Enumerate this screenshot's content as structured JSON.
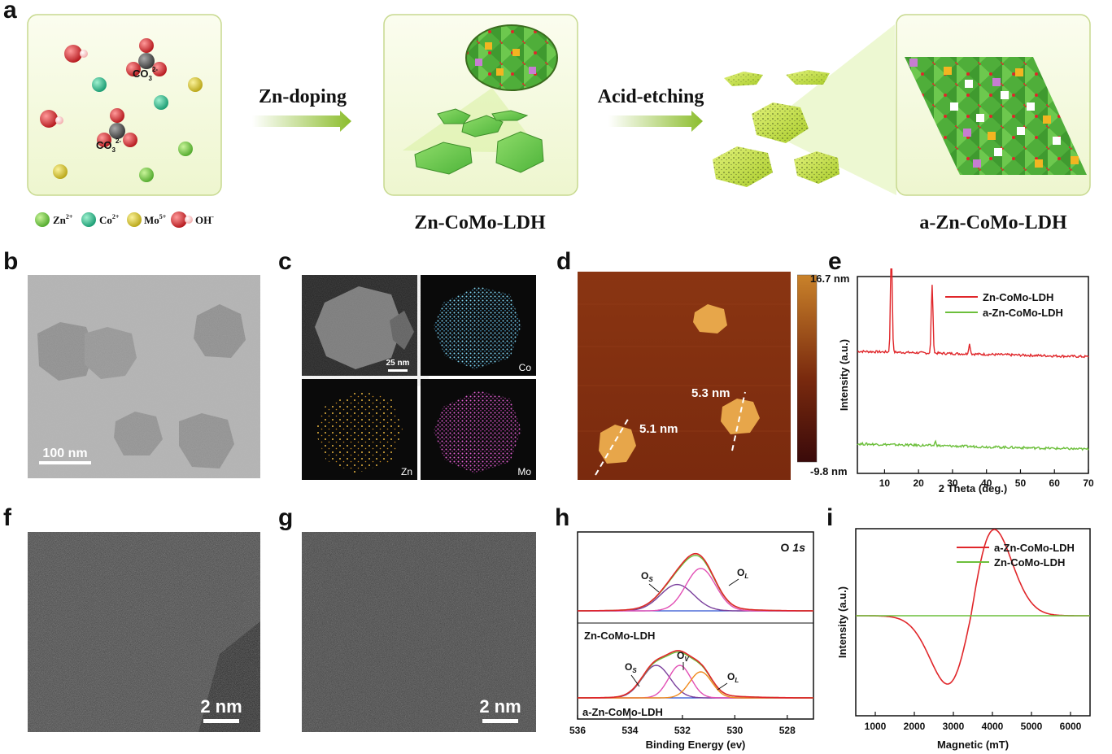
{
  "panels": {
    "a": {
      "label": "a",
      "step1": "Zn-doping",
      "step2": "Acid-etching",
      "product1": "Zn-CoMo-LDH",
      "product2": "a-Zn-CoMo-LDH",
      "ion_co3_1": "CO",
      "ion_co3_1_sub": "3",
      "ion_co3_1_sup": "2-",
      "ion_co3_2": "CO",
      "ion_co3_2_sub": "3",
      "ion_co3_2_sup": "2-",
      "legend": [
        {
          "name": "Zn",
          "sup": "2+",
          "color": "#6cc33a"
        },
        {
          "name": "Co",
          "sup": "2+",
          "color": "#2fb58b"
        },
        {
          "name": "Mo",
          "sup": "5+",
          "color": "#d9c82a"
        },
        {
          "name": "OH",
          "sup": "-",
          "color": "#d9363b"
        }
      ]
    },
    "b": {
      "label": "b",
      "scale": "100 nm"
    },
    "c": {
      "label": "c",
      "scale": "25 nm",
      "maps": [
        "Co",
        "Zn",
        "Mo"
      ]
    },
    "d": {
      "label": "d",
      "h1": "5.3 nm",
      "h2": "5.1 nm",
      "cmax": "16.7 nm",
      "cmin": "-9.8 nm"
    },
    "f": {
      "label": "f",
      "scale": "2 nm"
    },
    "g": {
      "label": "g",
      "scale": "2 nm"
    }
  },
  "chart_data": [
    {
      "id": "e",
      "label": "e",
      "type": "line",
      "xlabel": "2 Theta (deg.)",
      "ylabel": "Intensity (a.u.)",
      "xlim": [
        2,
        70
      ],
      "xticks": [
        10,
        20,
        30,
        40,
        50,
        60,
        70
      ],
      "series": [
        {
          "name": "Zn-CoMo-LDH",
          "color": "#e0262a",
          "baseline": 0.62,
          "peaks": [
            [
              12,
              0.55
            ],
            [
              24,
              0.35
            ],
            [
              35,
              0.05
            ]
          ]
        },
        {
          "name": "a-Zn-CoMo-LDH",
          "color": "#6cbf3b",
          "baseline": 0.15,
          "peaks": [
            [
              25,
              0.02
            ]
          ]
        }
      ]
    },
    {
      "id": "h",
      "label": "h",
      "type": "line",
      "title": "O 1s",
      "title_main": "O",
      "title_em": "1s",
      "xlabel": "Binding Energy (ev)",
      "xlim": [
        536,
        527
      ],
      "xticks": [
        536,
        534,
        532,
        530,
        528
      ],
      "top": {
        "name": "Zn-CoMo-LDH",
        "annotations": [
          {
            "text": "O",
            "sub": "S"
          },
          {
            "text": "O",
            "sub": "L"
          }
        ],
        "components": [
          {
            "color": "#7a3f9c",
            "center": 532.2,
            "width": 0.9,
            "amp": 0.36
          },
          {
            "color": "#e24fb5",
            "center": 531.3,
            "width": 0.8,
            "amp": 0.58
          }
        ],
        "envelope_color": "#e0262a",
        "fit_color": "#6cbf3b",
        "baseline_color": "#2b4fd0"
      },
      "bottom": {
        "name": "a-Zn-CoMo-LDH",
        "annotations": [
          {
            "text": "O",
            "sub": "S"
          },
          {
            "text": "O",
            "sub": "V"
          },
          {
            "text": "O",
            "sub": "L"
          }
        ],
        "components": [
          {
            "color": "#7a3f9c",
            "center": 533.0,
            "width": 0.75,
            "amp": 0.5
          },
          {
            "color": "#e24fb5",
            "center": 532.1,
            "width": 0.6,
            "amp": 0.5
          },
          {
            "color": "#f08a1c",
            "center": 531.3,
            "width": 0.6,
            "amp": 0.4
          }
        ],
        "envelope_color": "#e0262a",
        "fit_color": "#6cbf3b",
        "baseline_color": "#2b4fd0"
      }
    },
    {
      "id": "i",
      "label": "i",
      "type": "line",
      "xlabel": "Magnetic (mT)",
      "ylabel": "Intensity (a.u.)",
      "xlim": [
        500,
        6500
      ],
      "xticks": [
        1000,
        2000,
        3000,
        4000,
        5000,
        6000
      ],
      "series": [
        {
          "name": "a-Zn-CoMo-LDH",
          "color": "#e0262a",
          "max_at": 2850,
          "min_at": 4050
        },
        {
          "name": "Zn-CoMo-LDH",
          "color": "#6cbf3b",
          "flat": true
        }
      ]
    }
  ]
}
